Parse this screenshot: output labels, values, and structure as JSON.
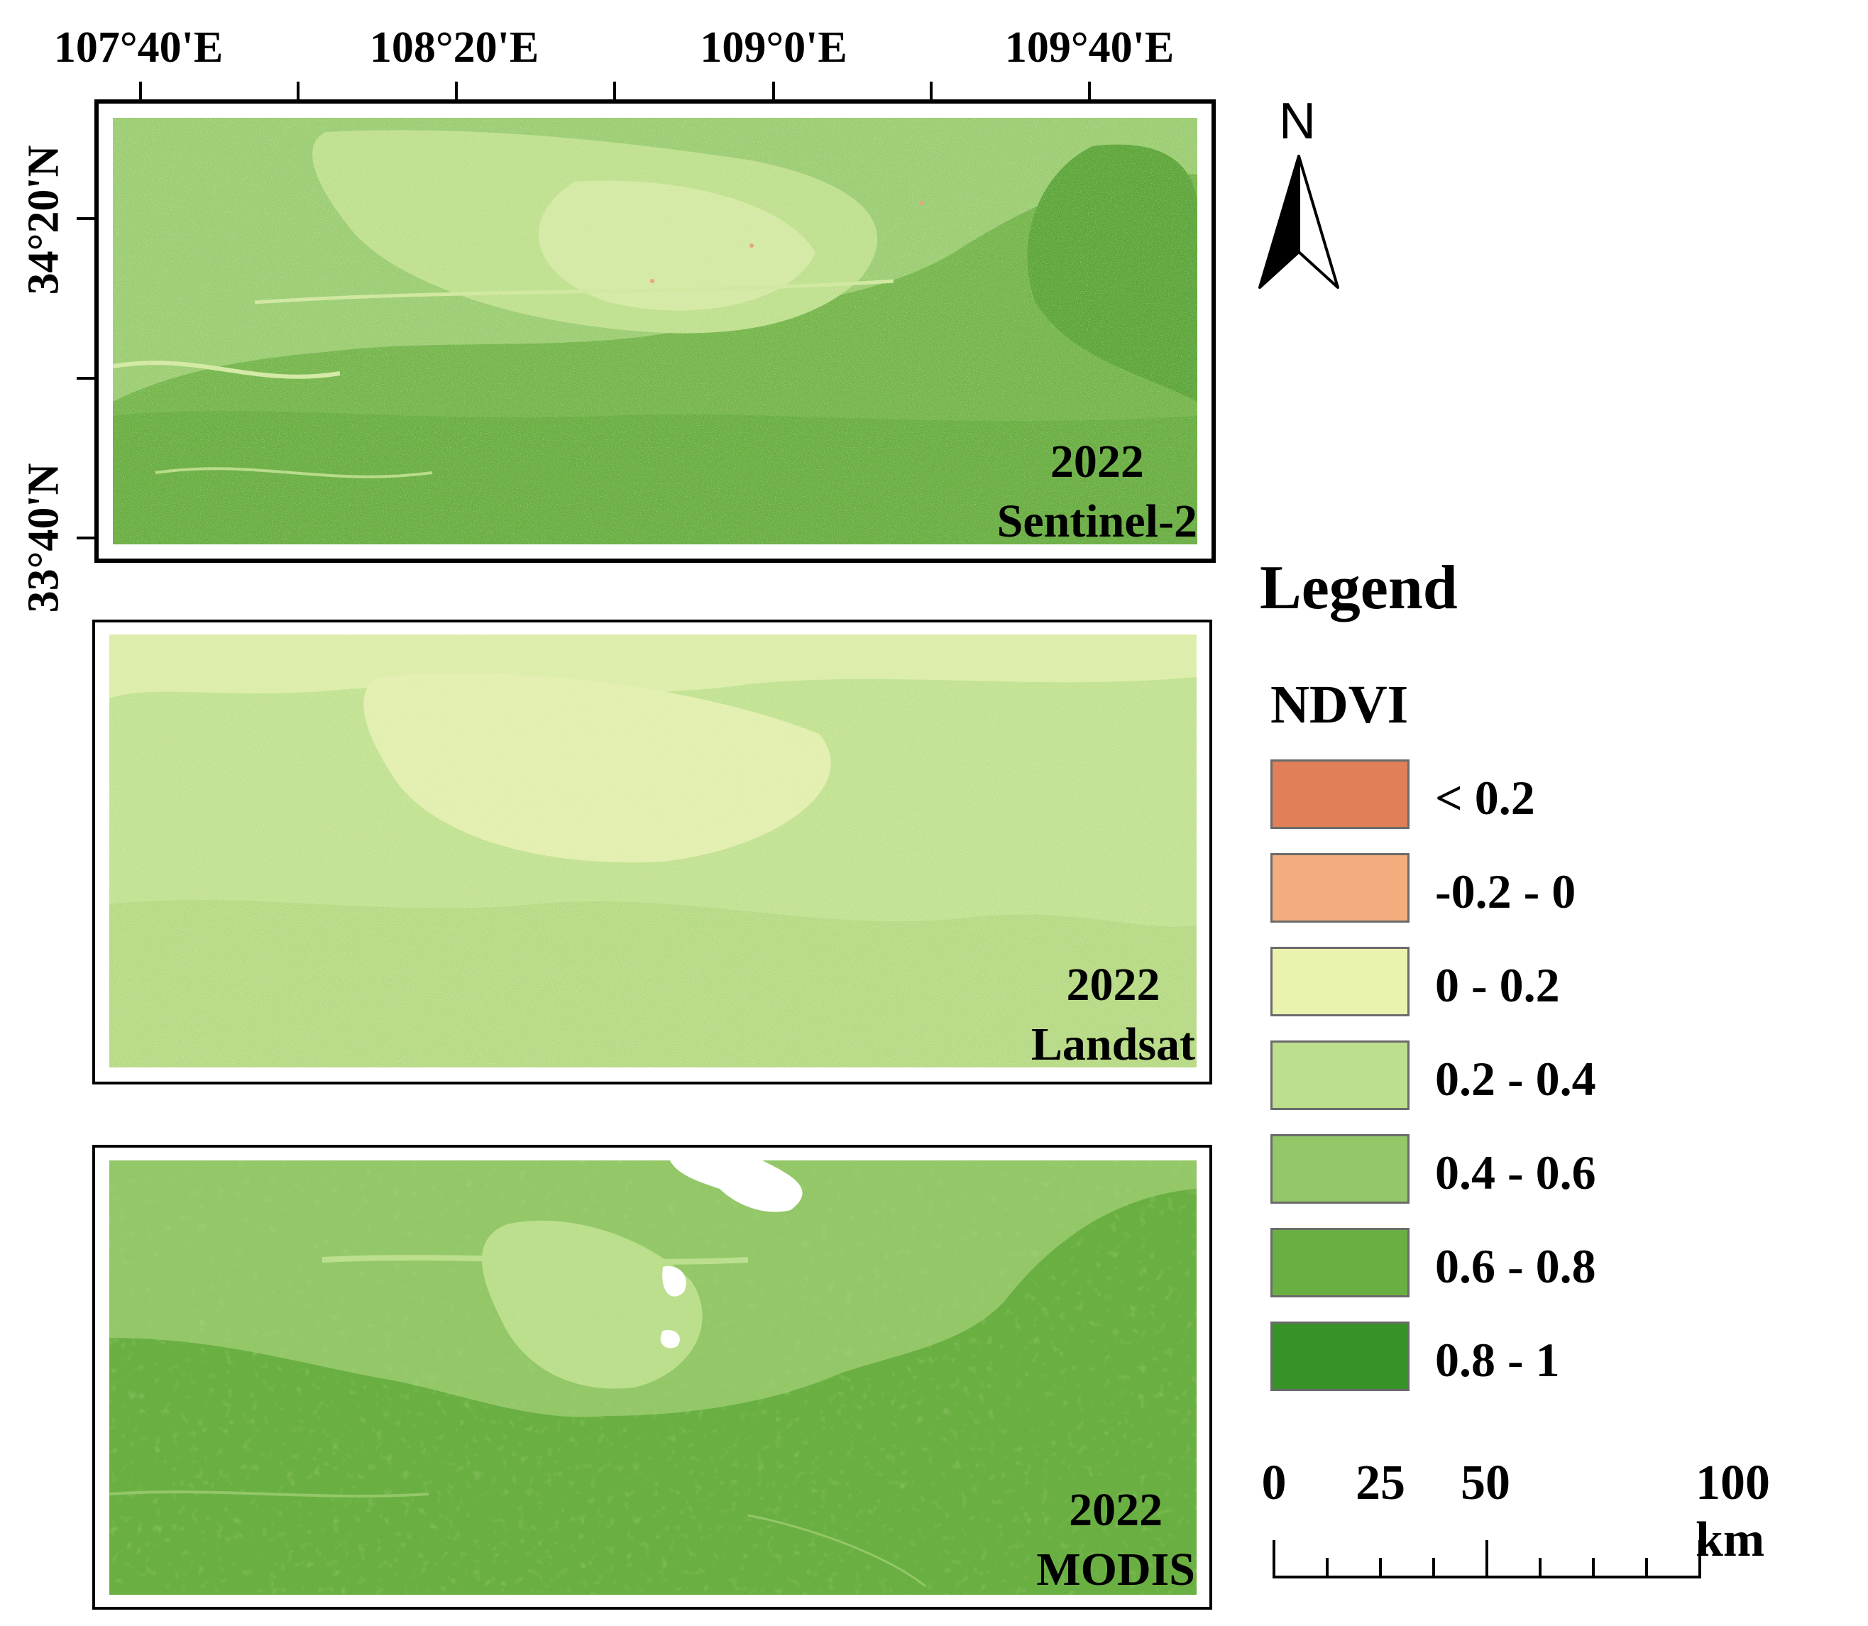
{
  "top_axis_labels": [
    "107°40'E",
    "108°20'E",
    "109°0'E",
    "109°40'E"
  ],
  "left_axis_labels": [
    "34°20'N",
    "33°40'N"
  ],
  "panels": [
    {
      "year": "2022",
      "sensor": "Sentinel-2",
      "dominant_class": "0.6 - 0.8"
    },
    {
      "year": "2022",
      "sensor": "Landsat",
      "dominant_class": "0.2 - 0.4"
    },
    {
      "year": "2022",
      "sensor": "MODIS",
      "dominant_class": "0.6 - 0.8"
    }
  ],
  "north_arrow": {
    "label": "N",
    "icon": "north-arrow-icon"
  },
  "legend": {
    "title": "Legend",
    "subtitle": "NDVI",
    "classes": [
      {
        "label": "< 0.2",
        "color": "#e07f58"
      },
      {
        "label": "-0.2 - 0",
        "color": "#f2ad7e"
      },
      {
        "label": "0 - 0.2",
        "color": "#eaf2ad"
      },
      {
        "label": "0.2 - 0.4",
        "color": "#bcdf8e"
      },
      {
        "label": "0.4 - 0.6",
        "color": "#93c768"
      },
      {
        "label": "0.6 - 0.8",
        "color": "#6aaf42"
      },
      {
        "label": "0.8 - 1",
        "color": "#379228"
      }
    ]
  },
  "scale_bar": {
    "labels": [
      "0",
      "25",
      "50",
      "100 km"
    ]
  }
}
